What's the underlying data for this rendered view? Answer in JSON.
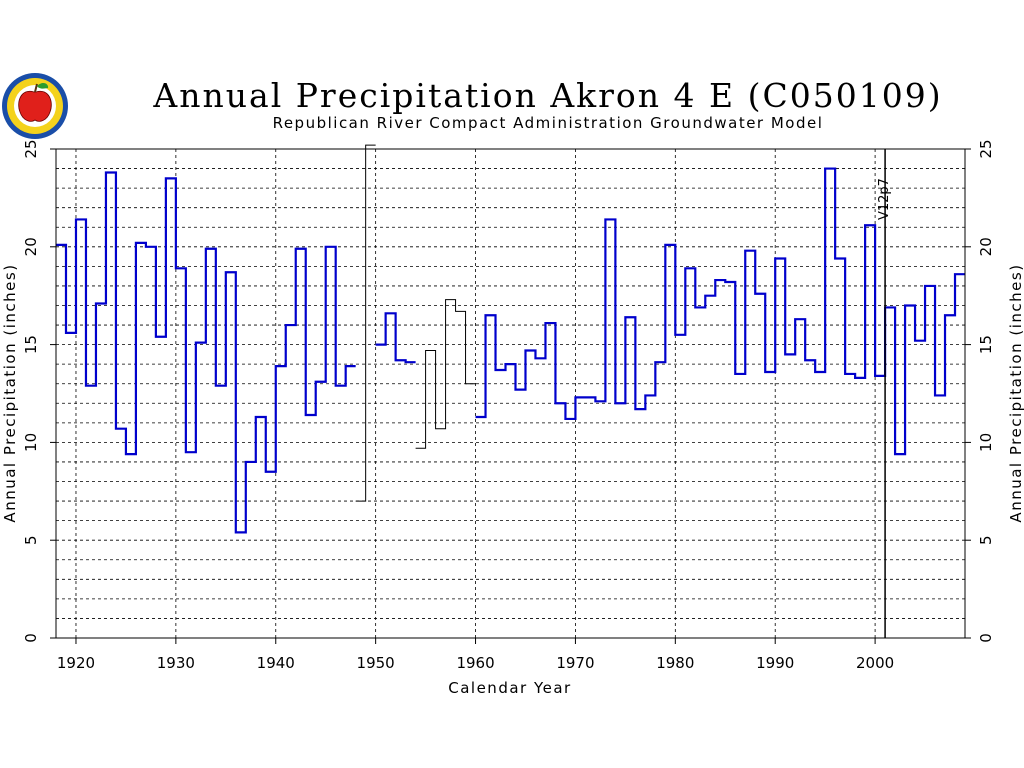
{
  "chart_data": {
    "type": "line",
    "step": true,
    "title": "Annual Precipitation Akron 4 E (C050109)",
    "subtitle": "Republican River Compact Administration Groundwater Model",
    "xlabel": "Calendar Year",
    "ylabel_left": "Annual Precipitation (inches)",
    "ylabel_right": "Annual Precipitation (inches)",
    "xlim": [
      1918,
      2009
    ],
    "ylim": [
      0,
      25
    ],
    "x_ticks": [
      1920,
      1930,
      1940,
      1950,
      1960,
      1970,
      1980,
      1990,
      2000
    ],
    "y_ticks": [
      0,
      5,
      10,
      15,
      20,
      25
    ],
    "grid": true,
    "vertical_marker": {
      "x": 2001,
      "label": "V12p7"
    },
    "series": [
      {
        "color": "#0000cc",
        "x": [
          1918,
          1919,
          1920,
          1921,
          1922,
          1923,
          1924,
          1925,
          1926,
          1927,
          1928,
          1929,
          1930,
          1931,
          1932,
          1933,
          1934,
          1935,
          1936,
          1937,
          1938,
          1939,
          1940,
          1941,
          1942,
          1943,
          1944,
          1945,
          1946,
          1947
        ],
        "values": [
          20.1,
          15.6,
          21.4,
          12.9,
          17.1,
          23.8,
          10.7,
          9.4,
          20.2,
          20.0,
          15.4,
          23.5,
          18.9,
          9.5,
          15.1,
          19.9,
          12.9,
          18.7,
          5.4,
          9.0,
          11.3,
          8.5,
          13.9,
          16.0,
          19.9,
          11.4,
          13.1,
          20.0,
          12.9,
          13.9
        ]
      },
      {
        "color": "#000000",
        "x": [
          1948,
          1949
        ],
        "values": [
          7.0,
          25.2
        ]
      },
      {
        "color": "#0000cc",
        "x": [
          1950,
          1951,
          1952,
          1953
        ],
        "values": [
          15.0,
          16.6,
          14.2,
          14.1
        ]
      },
      {
        "color": "#000000",
        "x": [
          1954,
          1955,
          1956,
          1957,
          1958,
          1959
        ],
        "values": [
          9.7,
          14.7,
          10.7,
          17.3,
          16.7,
          13.0
        ]
      },
      {
        "color": "#0000cc",
        "x": [
          1960,
          1961,
          1962,
          1963,
          1964,
          1965,
          1966,
          1967,
          1968,
          1969,
          1970,
          1971,
          1972,
          1973,
          1974,
          1975,
          1976,
          1977,
          1978,
          1979,
          1980,
          1981,
          1982,
          1983,
          1984,
          1985,
          1986,
          1987,
          1988,
          1989,
          1990,
          1991,
          1992,
          1993,
          1994,
          1995,
          1996,
          1997,
          1998,
          1999,
          2000,
          2001,
          2002,
          2003,
          2004,
          2005,
          2006,
          2007,
          2008
        ],
        "values": [
          11.3,
          16.5,
          13.7,
          14.0,
          12.7,
          14.7,
          14.3,
          16.1,
          12.0,
          11.2,
          12.3,
          12.3,
          12.1,
          21.4,
          12.0,
          16.4,
          11.7,
          12.4,
          14.1,
          20.1,
          15.5,
          18.9,
          16.9,
          17.5,
          18.3,
          18.2,
          13.5,
          19.8,
          17.6,
          13.6,
          19.4,
          14.5,
          16.3,
          14.2,
          13.6,
          24.0,
          19.4,
          13.5,
          13.3,
          21.1,
          13.4,
          16.9,
          9.4,
          17.0,
          15.2,
          18.0,
          12.4,
          16.5,
          18.6
        ]
      }
    ]
  },
  "logo": {
    "name": "apple-logo"
  }
}
